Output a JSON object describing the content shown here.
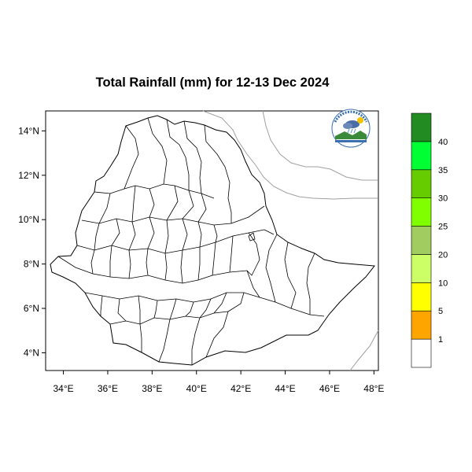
{
  "title": "Total Rainfall (mm) for 12-13 Dec 2024",
  "map": {
    "x_axis": {
      "range": [
        33.2,
        48.2
      ],
      "ticks": [
        {
          "value": 34,
          "label": "34°E"
        },
        {
          "value": 36,
          "label": "36°E"
        },
        {
          "value": 38,
          "label": "38°E"
        },
        {
          "value": 40,
          "label": "40°E"
        },
        {
          "value": 42,
          "label": "42°E"
        },
        {
          "value": 44,
          "label": "44°E"
        },
        {
          "value": 46,
          "label": "46°E"
        },
        {
          "value": 48,
          "label": "48°E"
        }
      ]
    },
    "y_axis": {
      "range": [
        3.2,
        14.9
      ],
      "ticks": [
        {
          "value": 4,
          "label": "4°N"
        },
        {
          "value": 6,
          "label": "6°N"
        },
        {
          "value": 8,
          "label": "8°N"
        },
        {
          "value": 10,
          "label": "10°N"
        },
        {
          "value": 12,
          "label": "12°N"
        },
        {
          "value": 14,
          "label": "14°N"
        }
      ]
    },
    "legend": {
      "bins": [
        {
          "color": "#ffffff"
        },
        {
          "color": "#ffa500"
        },
        {
          "color": "#ffff00"
        },
        {
          "color": "#ccff66"
        },
        {
          "color": "#a0cc60"
        },
        {
          "color": "#80ff00"
        },
        {
          "color": "#66cc00"
        },
        {
          "color": "#00ff33"
        },
        {
          "color": "#228b22"
        }
      ],
      "labels": [
        "1",
        "5",
        "10",
        "20",
        "25",
        "30",
        "35",
        "40"
      ]
    },
    "logo": {
      "name": "ethiopian-meteorology-institute-logo"
    }
  }
}
